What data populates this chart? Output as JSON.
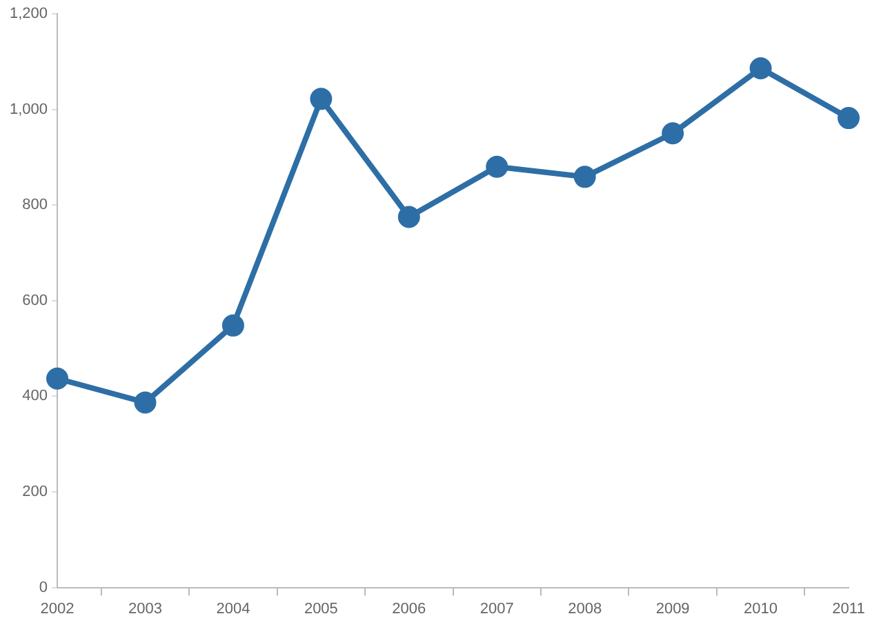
{
  "chart_data": {
    "type": "line",
    "categories": [
      "2002",
      "2003",
      "2004",
      "2005",
      "2006",
      "2007",
      "2008",
      "2009",
      "2010",
      "2011"
    ],
    "series": [
      {
        "color": "#2e6ea6",
        "values": [
          437,
          387,
          548,
          1022,
          775,
          880,
          859,
          950,
          1086,
          982
        ]
      }
    ],
    "ylim": [
      0,
      1200
    ],
    "yticks": [
      0,
      200,
      400,
      600,
      800,
      {
        "value": 1000,
        "label": "1,000"
      },
      {
        "value": 1200,
        "label": "1,200"
      }
    ],
    "grid": false,
    "legend": false,
    "marker": "circle",
    "line_style": "solid"
  }
}
